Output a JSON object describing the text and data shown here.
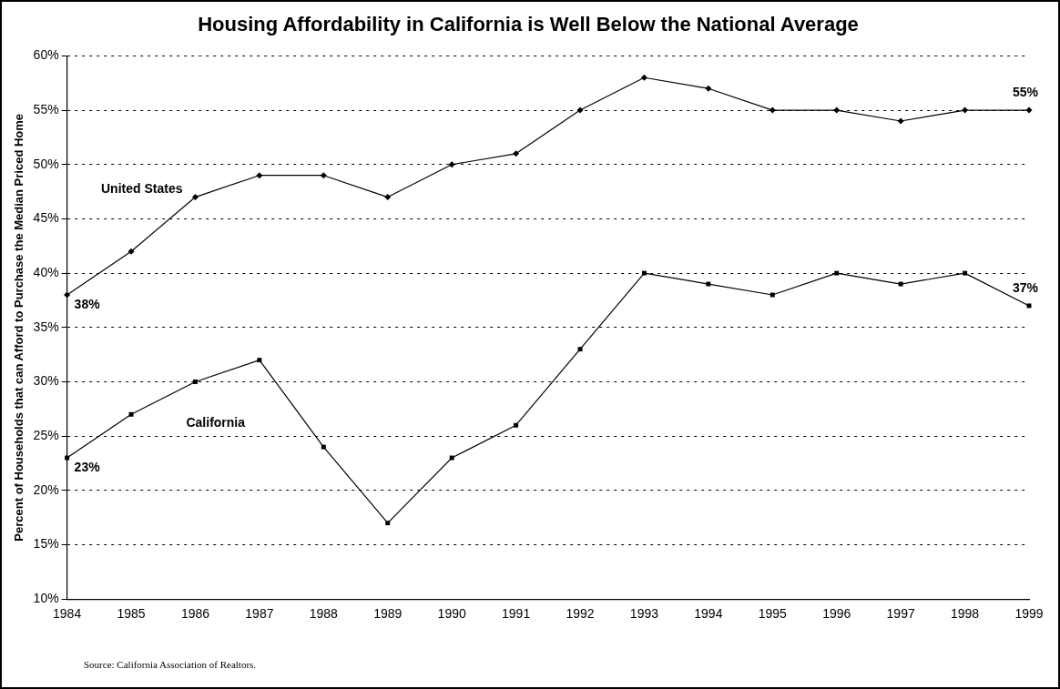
{
  "chart_data": {
    "type": "line",
    "title": "Housing Affordability in California is Well Below the National Average",
    "ylabel": "Percent of Households that can Afford to Purchase the Median Priced Home",
    "categories": [
      "1984",
      "1985",
      "1986",
      "1987",
      "1988",
      "1989",
      "1990",
      "1991",
      "1992",
      "1993",
      "1994",
      "1995",
      "1996",
      "1997",
      "1998",
      "1999"
    ],
    "ylim": [
      10,
      60
    ],
    "yticks": [
      {
        "value": 10,
        "label": "10%"
      },
      {
        "value": 15,
        "label": "15%"
      },
      {
        "value": 20,
        "label": "20%"
      },
      {
        "value": 25,
        "label": "25%"
      },
      {
        "value": 30,
        "label": "30%"
      },
      {
        "value": 35,
        "label": "35%"
      },
      {
        "value": 40,
        "label": "40%"
      },
      {
        "value": 45,
        "label": "45%"
      },
      {
        "value": 50,
        "label": "50%"
      },
      {
        "value": 55,
        "label": "55%"
      },
      {
        "value": 60,
        "label": "60%"
      }
    ],
    "grid": "y",
    "line_style": "solid",
    "series": [
      {
        "name": "United States",
        "color": "#000000",
        "marker": "diamond",
        "values": [
          38,
          42,
          47,
          49,
          49,
          47,
          50,
          51,
          55,
          58,
          57,
          55,
          55,
          54,
          55,
          55
        ],
        "value_labels": [
          "38%",
          null,
          null,
          null,
          null,
          null,
          null,
          null,
          null,
          null,
          null,
          null,
          null,
          null,
          null,
          "55%"
        ]
      },
      {
        "name": "California",
        "color": "#000000",
        "marker": "square",
        "values": [
          23,
          27,
          30,
          32,
          24,
          17,
          23,
          26,
          33,
          40,
          39,
          38,
          40,
          39,
          40,
          37
        ],
        "value_labels": [
          "23%",
          null,
          null,
          null,
          null,
          null,
          null,
          null,
          null,
          null,
          null,
          null,
          null,
          null,
          null,
          "37%"
        ]
      }
    ],
    "annotations": [
      "Source: California Association of Realtors."
    ]
  }
}
